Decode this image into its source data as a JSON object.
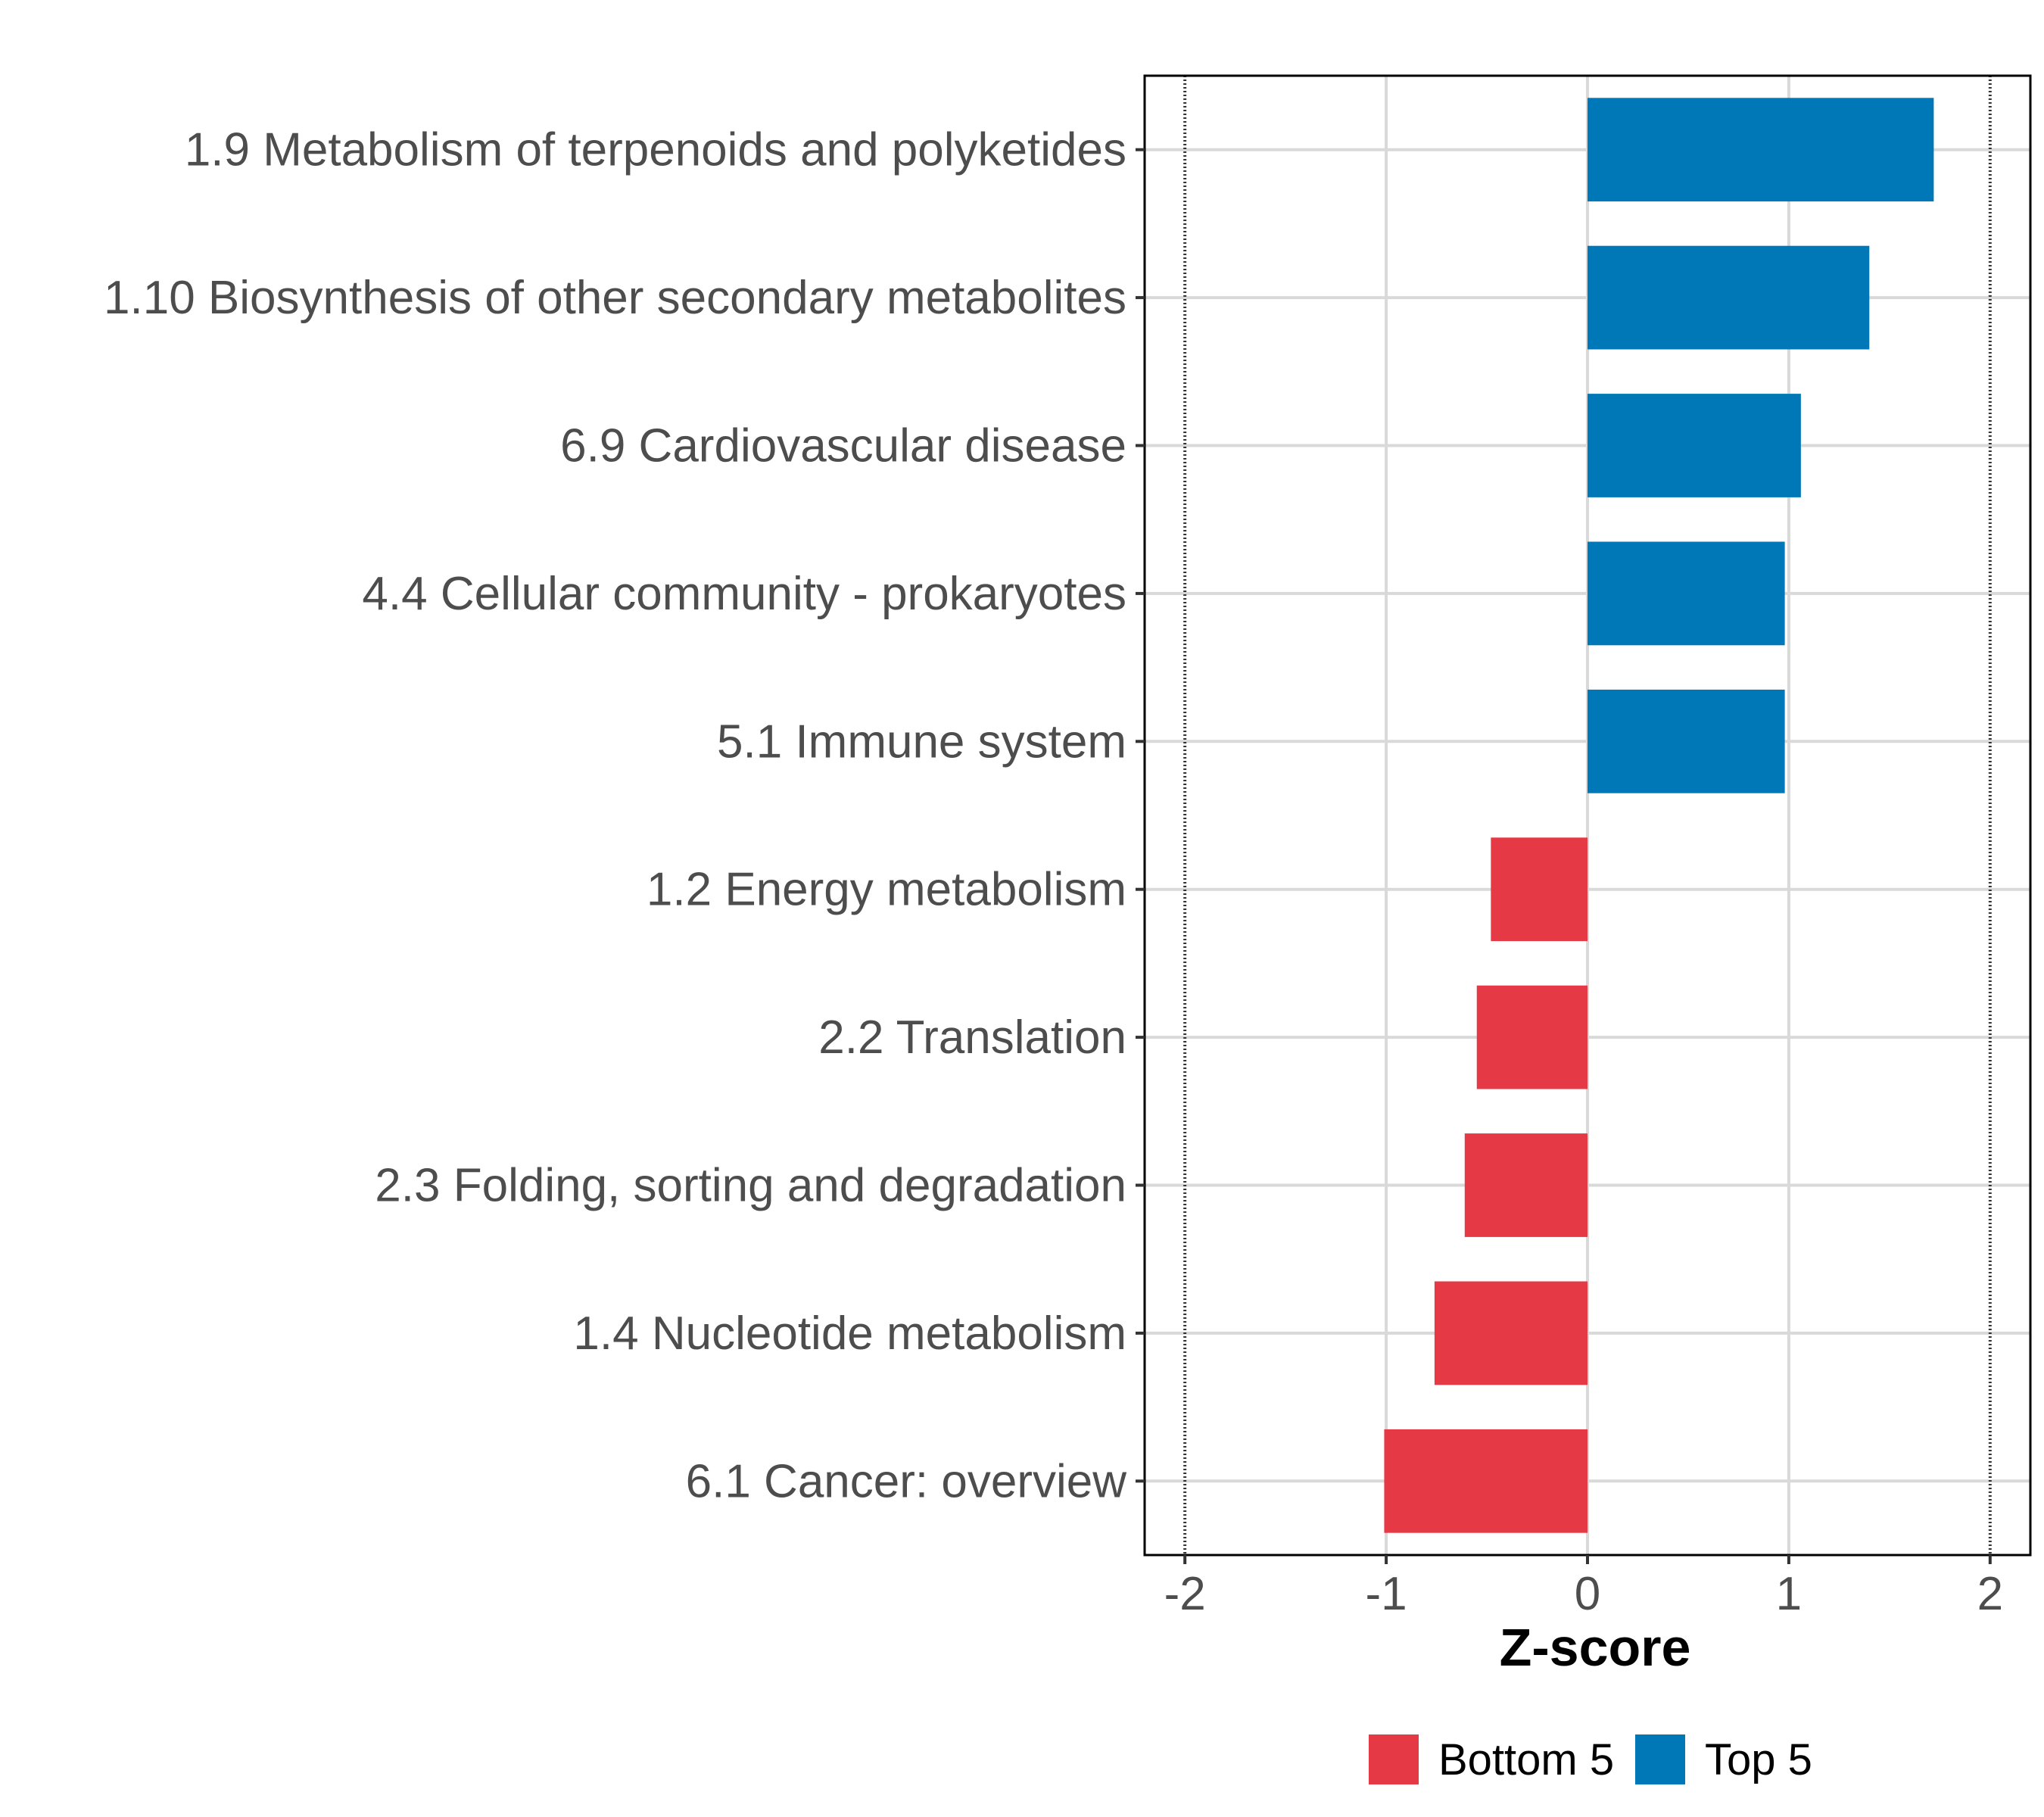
{
  "chart_data": {
    "type": "bar",
    "orientation": "horizontal",
    "xlabel": "Z-score",
    "ylabel": "",
    "xlim": [
      -2.2,
      2.2
    ],
    "xticks": [
      -2,
      -1,
      0,
      1,
      2
    ],
    "xtick_labels": [
      "-2",
      "-1",
      "0",
      "1",
      "2"
    ],
    "reference_lines": [
      -2,
      2
    ],
    "grid": true,
    "categories": [
      "1.9 Metabolism of terpenoids and polyketides",
      "1.10 Biosynthesis of other secondary metabolites",
      "6.9 Cardiovascular disease",
      "4.4 Cellular community - prokaryotes",
      "5.1 Immune system",
      "1.2 Energy metabolism",
      "2.2 Translation",
      "2.3 Folding, sorting and degradation",
      "1.4 Nucleotide metabolism",
      "6.1 Cancer: overview"
    ],
    "values": [
      1.72,
      1.4,
      1.06,
      0.98,
      0.98,
      -0.48,
      -0.55,
      -0.61,
      -0.76,
      -1.01
    ],
    "groups": [
      "Top 5",
      "Top 5",
      "Top 5",
      "Top 5",
      "Top 5",
      "Bottom 5",
      "Bottom 5",
      "Bottom 5",
      "Bottom 5",
      "Bottom 5"
    ],
    "legend": [
      {
        "label": "Bottom 5",
        "color": "#e63946"
      },
      {
        "label": "Top 5",
        "color": "#0077b6"
      }
    ],
    "legend_position": "bottom"
  }
}
